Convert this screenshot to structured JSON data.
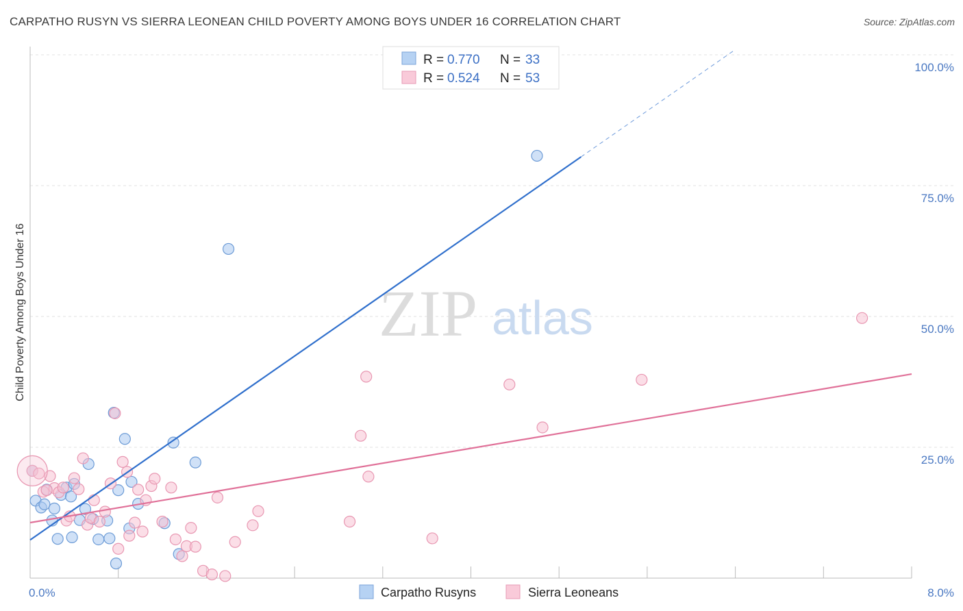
{
  "title": "CARPATHO RUSYN VS SIERRA LEONEAN CHILD POVERTY AMONG BOYS UNDER 16 CORRELATION CHART",
  "source": "Source: ZipAtlas.com",
  "watermark": {
    "zip": "ZIP",
    "atlas": "atlas"
  },
  "legend": {
    "items": [
      {
        "r_label": "R = ",
        "r_value": "0.770",
        "n_label": "N = ",
        "n_value": "33"
      },
      {
        "r_label": "R = ",
        "r_value": "0.524",
        "n_label": "N = ",
        "n_value": "53"
      }
    ]
  },
  "chart_data": {
    "type": "scatter",
    "title": "CARPATHO RUSYN VS SIERRA LEONEAN CHILD POVERTY AMONG BOYS UNDER 16 CORRELATION CHART",
    "xlabel": "",
    "ylabel": "Child Poverty Among Boys Under 16",
    "xlim": [
      0,
      8
    ],
    "ylim": [
      0,
      103
    ],
    "x_tick_labels": [
      {
        "value": 0,
        "label": "0.0%"
      },
      {
        "value": 8,
        "label": "8.0%"
      }
    ],
    "y_tick_labels": [
      {
        "value": 25,
        "label": "25.0%"
      },
      {
        "value": 50,
        "label": "50.0%"
      },
      {
        "value": 75,
        "label": "75.0%"
      },
      {
        "value": 100,
        "label": "100.0%"
      }
    ],
    "grid": true,
    "series": [
      {
        "name": "Carpatho Rusyns",
        "color": "#a9c9f0",
        "stroke": "#6c9bd6",
        "line_color": "#2f6fcc",
        "trend": {
          "x0": 0,
          "y0": 7.3,
          "x1": 5.0,
          "y1": 80.5,
          "dash_to_x": 6.4,
          "dash_to_y": 101.0
        },
        "points": [
          [
            0.02,
            20.5
          ],
          [
            0.05,
            14.8
          ],
          [
            0.1,
            13.5
          ],
          [
            0.13,
            14.1
          ],
          [
            0.15,
            16.9
          ],
          [
            0.2,
            11.0
          ],
          [
            0.22,
            13.3
          ],
          [
            0.28,
            15.9
          ],
          [
            0.33,
            17.3
          ],
          [
            0.37,
            15.6
          ],
          [
            0.4,
            18.0
          ],
          [
            0.45,
            11.1
          ],
          [
            0.5,
            13.2
          ],
          [
            0.53,
            21.8
          ],
          [
            0.57,
            11.3
          ],
          [
            0.62,
            7.4
          ],
          [
            0.7,
            11.0
          ],
          [
            0.72,
            7.6
          ],
          [
            0.76,
            31.6
          ],
          [
            0.78,
            2.8
          ],
          [
            0.8,
            16.8
          ],
          [
            0.86,
            26.6
          ],
          [
            0.9,
            9.5
          ],
          [
            0.92,
            18.4
          ],
          [
            0.98,
            14.2
          ],
          [
            1.22,
            10.5
          ],
          [
            1.3,
            25.9
          ],
          [
            1.35,
            4.6
          ],
          [
            1.5,
            22.1
          ],
          [
            1.8,
            62.9
          ],
          [
            0.38,
            7.8
          ],
          [
            0.25,
            7.5
          ],
          [
            4.6,
            80.7
          ]
        ]
      },
      {
        "name": "Sierra Leoneans",
        "color": "#f7c3d4",
        "stroke": "#e896b1",
        "line_color": "#e07098",
        "trend": {
          "x0": 0,
          "y0": 10.6,
          "x1": 8.0,
          "y1": 39.0
        },
        "points": [
          [
            0.02,
            20.5
          ],
          [
            0.08,
            20.0
          ],
          [
            0.12,
            16.5
          ],
          [
            0.18,
            19.5
          ],
          [
            0.22,
            17.2
          ],
          [
            0.26,
            16.4
          ],
          [
            0.3,
            17.3
          ],
          [
            0.33,
            11.0
          ],
          [
            0.36,
            11.8
          ],
          [
            0.4,
            19.1
          ],
          [
            0.44,
            17.0
          ],
          [
            0.48,
            22.9
          ],
          [
            0.52,
            10.2
          ],
          [
            0.55,
            11.5
          ],
          [
            0.58,
            14.9
          ],
          [
            0.63,
            10.8
          ],
          [
            0.68,
            12.7
          ],
          [
            0.73,
            18.1
          ],
          [
            0.77,
            31.5
          ],
          [
            0.8,
            5.6
          ],
          [
            0.84,
            22.2
          ],
          [
            0.88,
            20.3
          ],
          [
            0.9,
            8.1
          ],
          [
            0.95,
            10.6
          ],
          [
            0.98,
            16.9
          ],
          [
            1.02,
            8.9
          ],
          [
            1.05,
            14.9
          ],
          [
            1.1,
            17.6
          ],
          [
            1.13,
            19.0
          ],
          [
            1.2,
            10.8
          ],
          [
            1.28,
            17.3
          ],
          [
            1.32,
            7.4
          ],
          [
            1.38,
            4.2
          ],
          [
            1.42,
            6.1
          ],
          [
            1.46,
            9.6
          ],
          [
            1.5,
            6.0
          ],
          [
            1.57,
            1.4
          ],
          [
            1.65,
            0.7
          ],
          [
            1.7,
            15.4
          ],
          [
            1.77,
            0.4
          ],
          [
            1.86,
            6.9
          ],
          [
            2.02,
            10.1
          ],
          [
            2.07,
            12.8
          ],
          [
            2.9,
            10.8
          ],
          [
            3.0,
            27.2
          ],
          [
            3.05,
            38.5
          ],
          [
            3.07,
            19.4
          ],
          [
            3.65,
            7.6
          ],
          [
            4.35,
            37.0
          ],
          [
            4.65,
            28.8
          ],
          [
            5.55,
            37.9
          ],
          [
            7.55,
            49.7
          ],
          [
            0.15,
            16.8
          ]
        ]
      }
    ]
  }
}
